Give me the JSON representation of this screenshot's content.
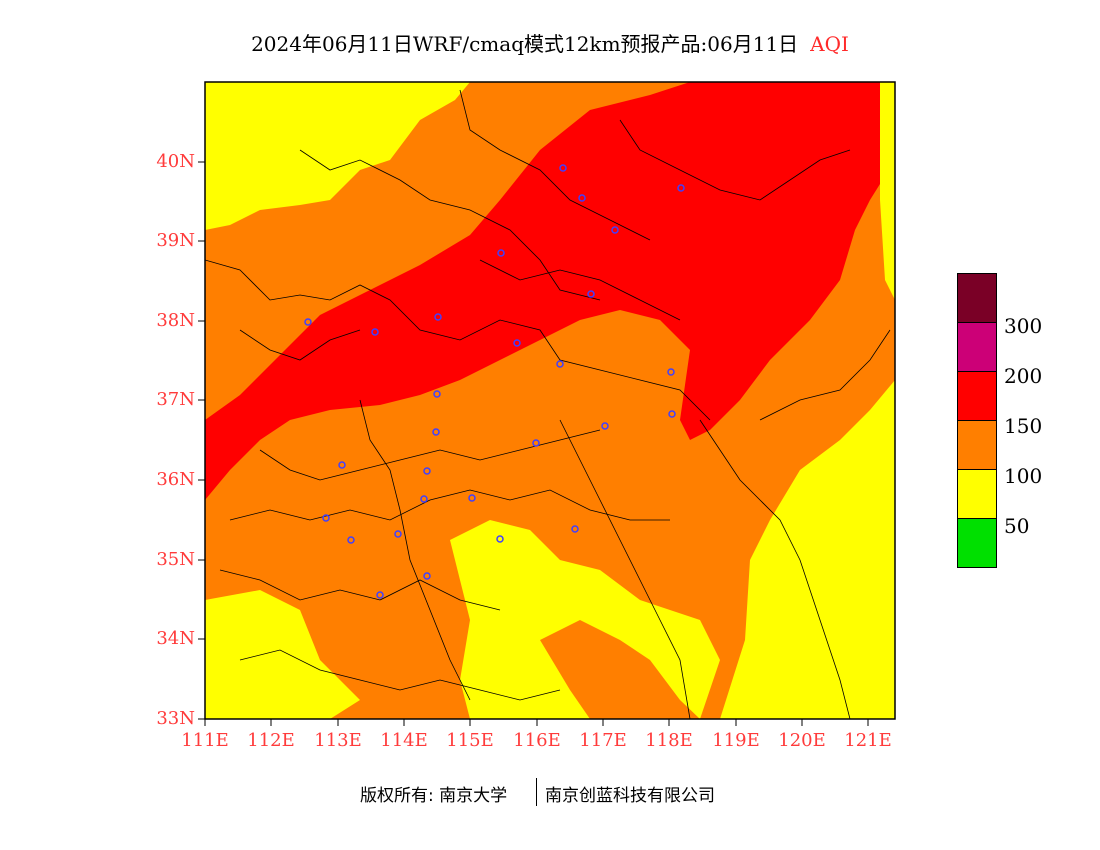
{
  "title": {
    "main": "2024年06月11日WRF/cmaq模式12km预报产品:06月11日",
    "variable": "AQI"
  },
  "lat_labels": [
    "40N",
    "39N",
    "38N",
    "37N",
    "36N",
    "35N",
    "34N",
    "33N"
  ],
  "lon_labels": [
    "111E",
    "112E",
    "113E",
    "114E",
    "115E",
    "116E",
    "117E",
    "118E",
    "119E",
    "120E",
    "121E"
  ],
  "legend": {
    "labels": [
      "300",
      "200",
      "150",
      "100",
      "50"
    ],
    "colors": {
      "gt300": "#7a0026",
      "200_300": "#cc0077",
      "150_200": "#ff0000",
      "100_150": "#ff7f00",
      "50_100": "#ffff00",
      "0_50": "#00e000"
    }
  },
  "footer": {
    "copyright": "版权所有: 南京大学",
    "company": "南京创蓝科技有限公司"
  },
  "map": {
    "lon_range": [
      111,
      121.4
    ],
    "lat_range": [
      33,
      40.9
    ]
  },
  "colors": {
    "axis_label": "#ff3b3b",
    "station_marker": "#4040ff"
  }
}
